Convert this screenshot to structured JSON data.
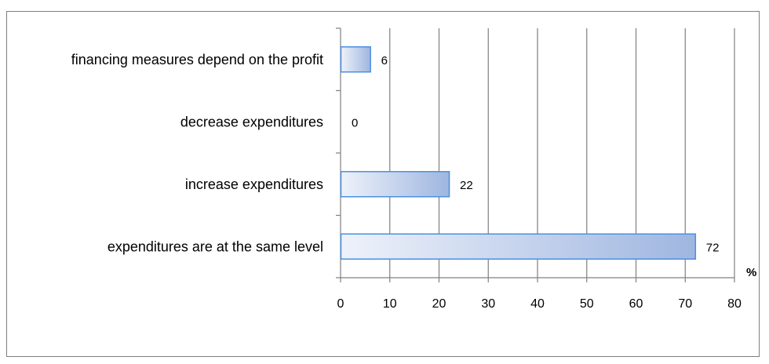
{
  "chart_data": {
    "type": "bar",
    "orientation": "horizontal",
    "categories": [
      "financing measures depend on the profit",
      "decrease expenditures",
      "increase expenditures",
      "expenditures are at the same level"
    ],
    "values": [
      6,
      0,
      22,
      72
    ],
    "value_labels": [
      "6",
      "0",
      "22",
      "72"
    ],
    "title": "",
    "xlabel": "%",
    "ylabel": "",
    "xlim": [
      0,
      80
    ],
    "xticks": [
      "0",
      "10",
      "20",
      "30",
      "40",
      "50",
      "60",
      "70",
      "80"
    ],
    "grid": "vertical",
    "legend": "none",
    "colors": {
      "bar_fill_start": "#eef2fa",
      "bar_fill_end": "#9fb6e0",
      "bar_stroke": "#4a90e2",
      "grid": "#808080",
      "axis": "#808080"
    }
  }
}
